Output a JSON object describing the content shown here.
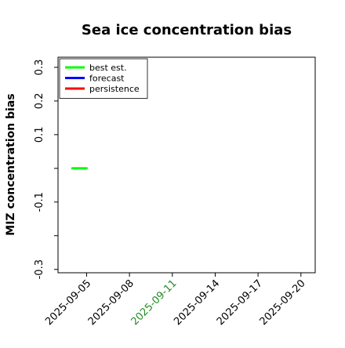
{
  "chart_data": {
    "type": "line",
    "title": "Sea ice concentration bias",
    "xlabel": "",
    "ylabel": "MIZ concentration bias",
    "xlim": [
      "2025-09-03",
      "2025-09-21"
    ],
    "ylim": [
      -0.31,
      0.33
    ],
    "x_ticks": [
      "2025-09-05",
      "2025-09-08",
      "2025-09-11",
      "2025-09-14",
      "2025-09-17",
      "2025-09-20"
    ],
    "x_tick_colors": [
      "#000000",
      "#000000",
      "#228B22",
      "#000000",
      "#000000",
      "#000000"
    ],
    "y_ticks": [
      -0.3,
      -0.2,
      -0.1,
      0.0,
      0.1,
      0.2,
      0.3
    ],
    "y_tick_labels": [
      "-0.3",
      "",
      "-0.1",
      "",
      "0.1",
      "0.2",
      "0.3"
    ],
    "legend_position": "top-left",
    "grid": false,
    "series": [
      {
        "name": "best est.",
        "color": "#00ff00",
        "points": [
          {
            "x": "2025-09-04",
            "y": 0.0
          },
          {
            "x": "2025-09-05",
            "y": 0.0
          }
        ]
      },
      {
        "name": "forecast",
        "color": "#0000ff",
        "points": []
      },
      {
        "name": "persistence",
        "color": "#ff0000",
        "points": []
      }
    ]
  }
}
